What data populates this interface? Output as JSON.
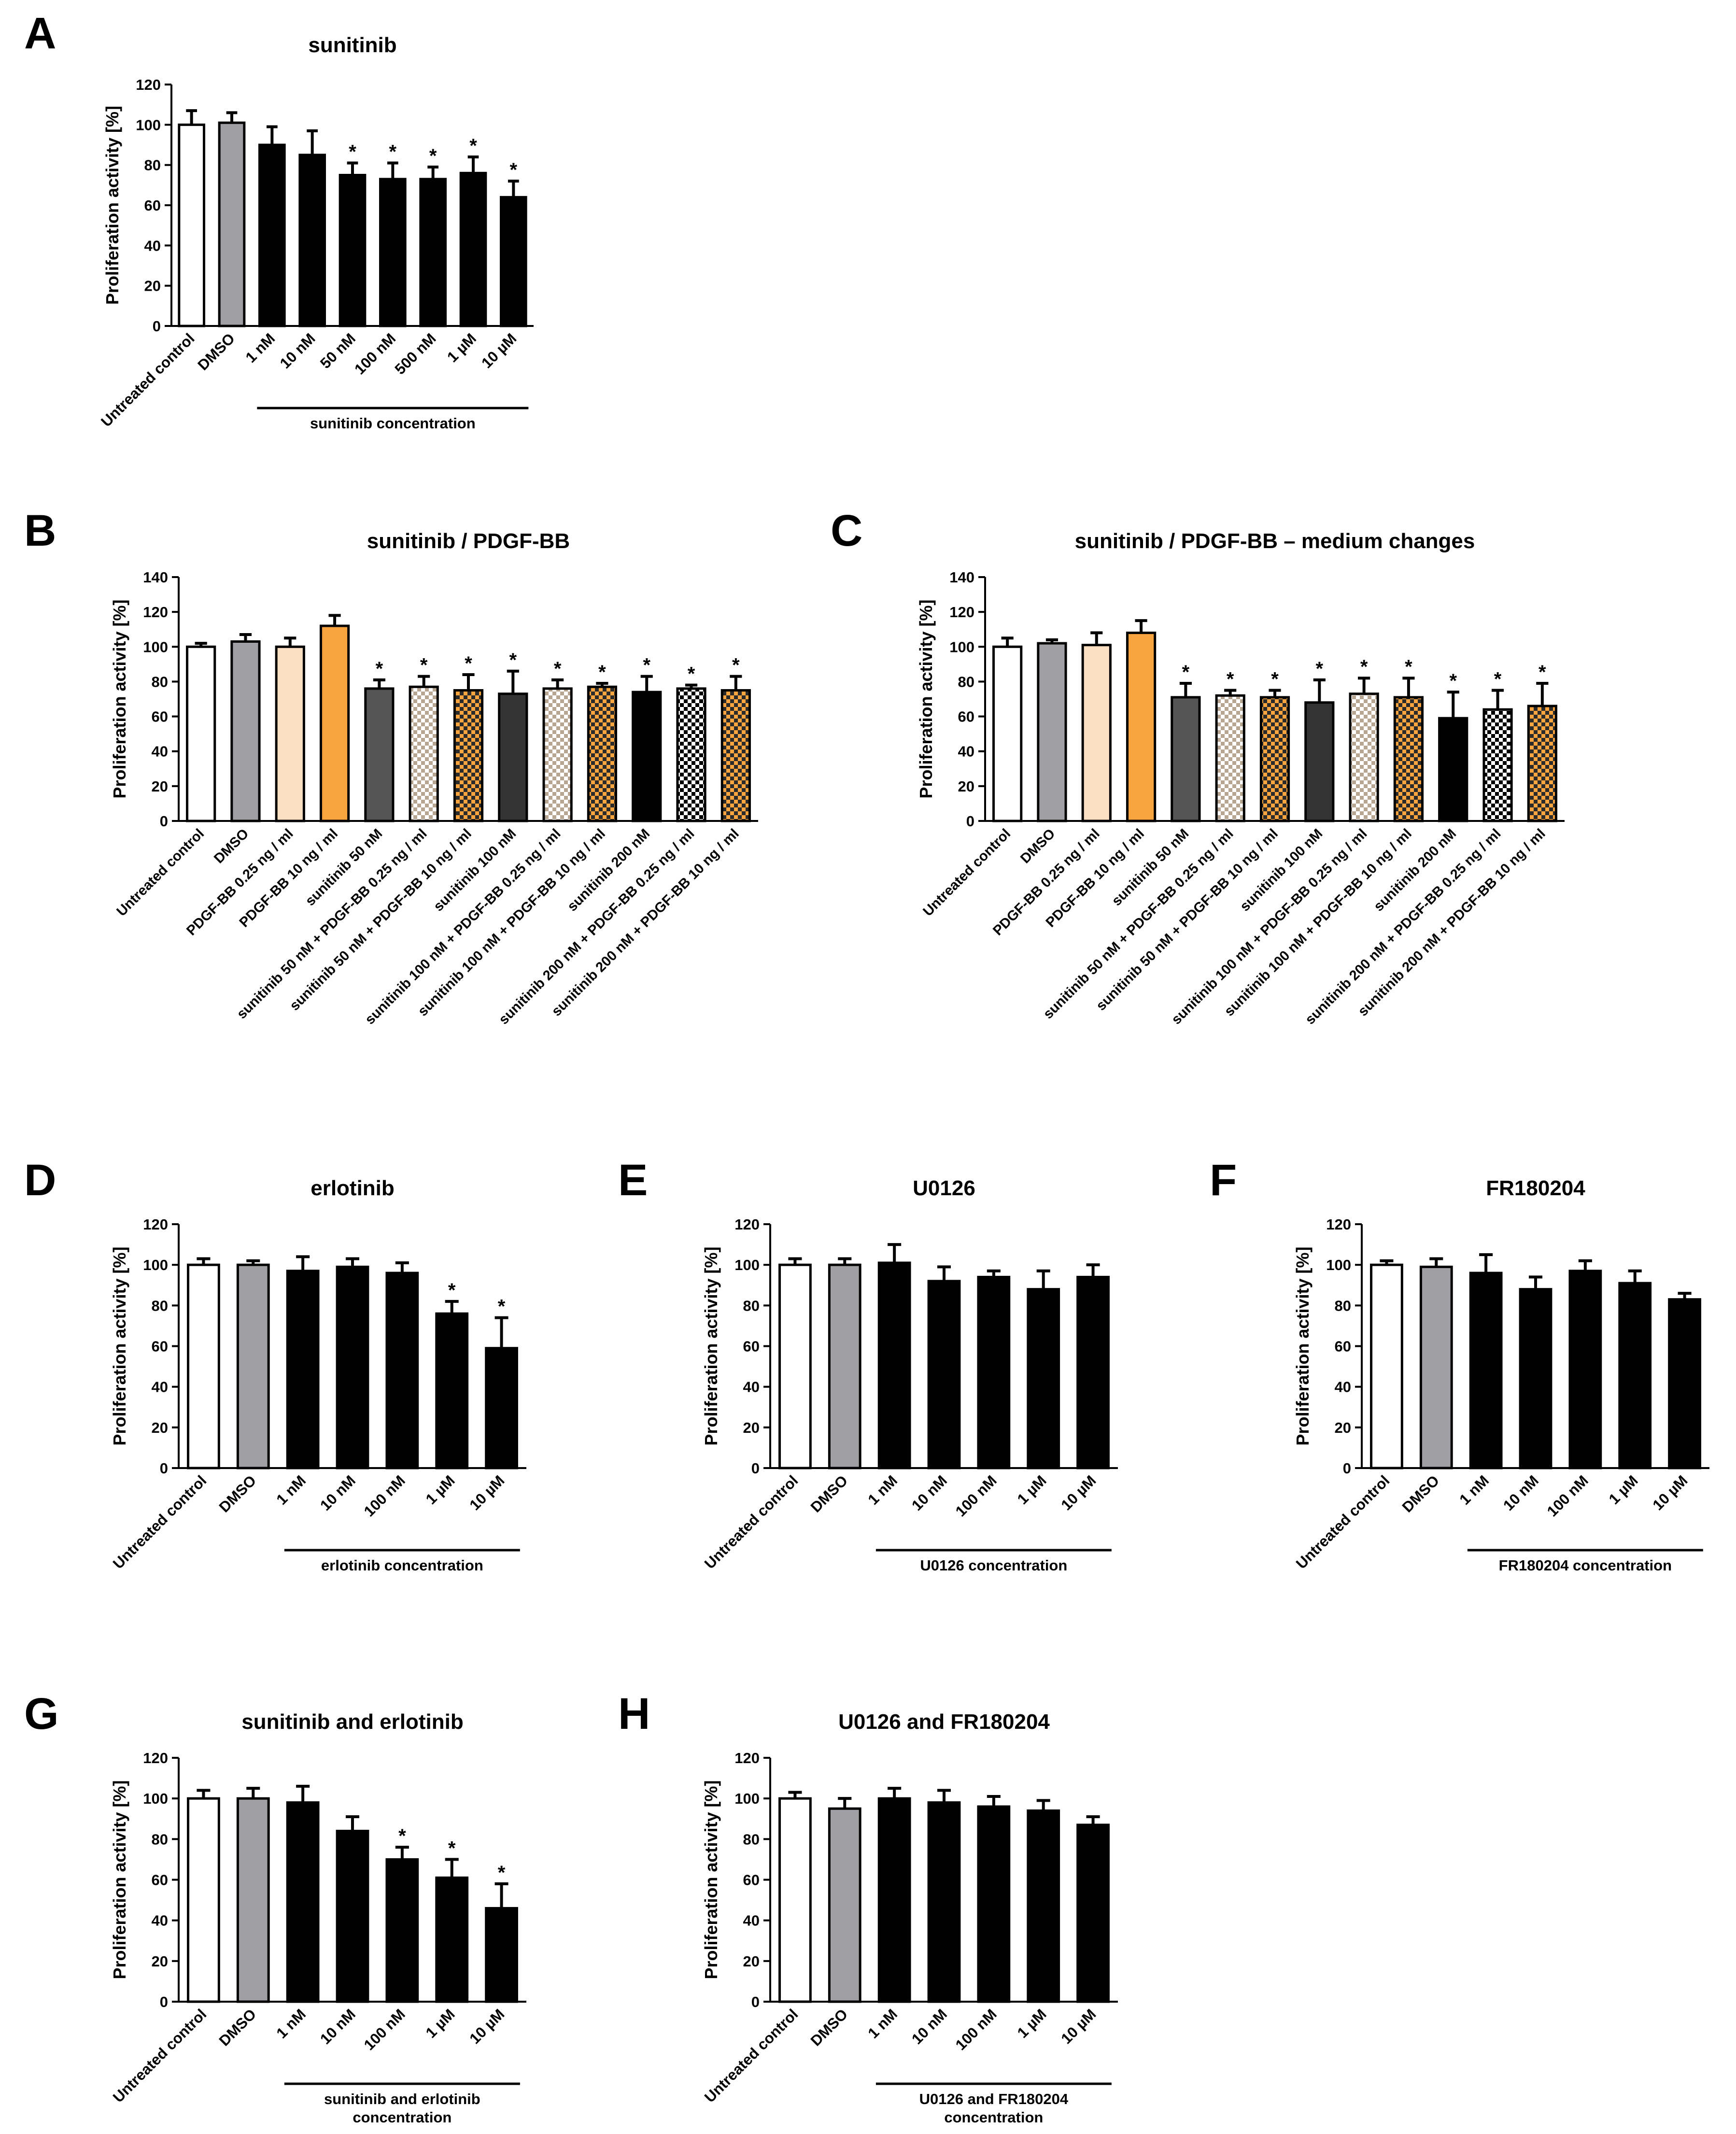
{
  "colors": {
    "white": "#ffffff",
    "gray": "#a0a0a4",
    "light_orange": "#fde0c2",
    "orange": "#f9a43f",
    "dark_gray": "#555555",
    "darker_gray": "#333333",
    "black": "#000000"
  },
  "chart_data": [
    {
      "id": "A",
      "panel_letter": "A",
      "type": "bar",
      "title": "sunitinib",
      "ylabel": "Proliferation activity [%]",
      "ylim": [
        0,
        120
      ],
      "yticks": [
        0,
        20,
        40,
        60,
        80,
        100,
        120
      ],
      "categories": [
        "Untreated control",
        "DMSO",
        "1 nM",
        "10 nM",
        "50 nM",
        "100 nM",
        "500 nM",
        "1 µM",
        "10 µM"
      ],
      "values": [
        100,
        101,
        90,
        85,
        75,
        73,
        73,
        76,
        64
      ],
      "errors": [
        7,
        5,
        9,
        12,
        6,
        8,
        6,
        8,
        8
      ],
      "significant": [
        false,
        false,
        false,
        false,
        true,
        true,
        true,
        true,
        true
      ],
      "fills": [
        "white",
        "gray",
        "black",
        "black",
        "black",
        "black",
        "black",
        "black",
        "black"
      ],
      "group_label": "sunitinib concentration",
      "group_range": [
        2,
        8
      ]
    },
    {
      "id": "B",
      "panel_letter": "B",
      "type": "bar",
      "title": "sunitinib / PDGF-BB",
      "ylabel": "Proliferation activity [%]",
      "ylim": [
        0,
        140
      ],
      "yticks": [
        0,
        20,
        40,
        60,
        80,
        100,
        120,
        140
      ],
      "categories": [
        "Untreated control",
        "DMSO",
        "PDGF-BB 0.25 ng / ml",
        "PDGF-BB 10 ng / ml",
        "sunitinib 50 nM",
        "sunitinib 50 nM + PDGF-BB 0.25 ng / ml",
        "sunitinib 50 nM + PDGF-BB 10 ng / ml",
        "sunitinib 100 nM",
        "sunitinib 100 nM + PDGF-BB 0.25 ng / ml",
        "sunitinib 100 nM + PDGF-BB 10 ng / ml",
        "sunitinib 200 nM",
        "sunitinib 200 nM + PDGF-BB 0.25 ng / ml",
        "sunitinib 200 nM + PDGF-BB 10 ng / ml"
      ],
      "values": [
        100,
        103,
        100,
        112,
        76,
        77,
        75,
        73,
        76,
        77,
        74,
        76,
        75
      ],
      "errors": [
        2,
        4,
        5,
        6,
        5,
        6,
        9,
        13,
        5,
        2,
        9,
        2,
        8
      ],
      "significant": [
        false,
        false,
        false,
        false,
        true,
        true,
        true,
        true,
        true,
        true,
        true,
        true,
        true
      ],
      "fills": [
        "white",
        "gray",
        "light_orange",
        "orange",
        "dark_gray",
        "check-light",
        "check-orange",
        "darker_gray",
        "check-light",
        "check-orange",
        "black",
        "check-white",
        "check-orange"
      ],
      "group_label": "",
      "group_range": null
    },
    {
      "id": "C",
      "panel_letter": "C",
      "type": "bar",
      "title": "sunitinib / PDGF-BB – medium changes",
      "ylabel": "Proliferation activity [%]",
      "ylim": [
        0,
        140
      ],
      "yticks": [
        0,
        20,
        40,
        60,
        80,
        100,
        120,
        140
      ],
      "categories": [
        "Untreated control",
        "DMSO",
        "PDGF-BB 0.25 ng / ml",
        "PDGF-BB 10 ng / ml",
        "sunitinib 50 nM",
        "sunitinib 50 nM + PDGF-BB 0.25 ng / ml",
        "sunitinib 50 nM + PDGF-BB 10 ng / ml",
        "sunitinib 100 nM",
        "sunitinib 100 nM + PDGF-BB 0.25 ng / ml",
        "sunitinib 100 nM + PDGF-BB 10 ng / ml",
        "sunitinib 200 nM",
        "sunitinib 200 nM + PDGF-BB 0.25 ng / ml",
        "sunitinib 200 nM + PDGF-BB 10 ng / ml"
      ],
      "values": [
        100,
        102,
        101,
        108,
        71,
        72,
        71,
        68,
        73,
        71,
        59,
        64,
        66
      ],
      "errors": [
        5,
        2,
        7,
        7,
        8,
        3,
        4,
        13,
        9,
        11,
        15,
        11,
        13
      ],
      "significant": [
        false,
        false,
        false,
        false,
        true,
        true,
        true,
        true,
        true,
        true,
        true,
        true,
        true
      ],
      "fills": [
        "white",
        "gray",
        "light_orange",
        "orange",
        "dark_gray",
        "check-light",
        "check-orange",
        "darker_gray",
        "check-light",
        "check-orange",
        "black",
        "check-white",
        "check-orange"
      ],
      "group_label": "",
      "group_range": null
    },
    {
      "id": "D",
      "panel_letter": "D",
      "type": "bar",
      "title": "erlotinib",
      "ylabel": "Proliferation activity [%]",
      "ylim": [
        0,
        120
      ],
      "yticks": [
        0,
        20,
        40,
        60,
        80,
        100,
        120
      ],
      "categories": [
        "Untreated control",
        "DMSO",
        "1 nM",
        "10 nM",
        "100 nM",
        "1 µM",
        "10 µM"
      ],
      "values": [
        100,
        100,
        97,
        99,
        96,
        76,
        59
      ],
      "errors": [
        3,
        2,
        7,
        4,
        5,
        6,
        15
      ],
      "significant": [
        false,
        false,
        false,
        false,
        false,
        true,
        true
      ],
      "fills": [
        "white",
        "gray",
        "black",
        "black",
        "black",
        "black",
        "black"
      ],
      "group_label": "erlotinib concentration",
      "group_range": [
        2,
        6
      ]
    },
    {
      "id": "E",
      "panel_letter": "E",
      "type": "bar",
      "title": "U0126",
      "ylabel": "Proliferation activity [%]",
      "ylim": [
        0,
        120
      ],
      "yticks": [
        0,
        20,
        40,
        60,
        80,
        100,
        120
      ],
      "categories": [
        "Untreated control",
        "DMSO",
        "1 nM",
        "10 nM",
        "100 nM",
        "1 µM",
        "10 µM"
      ],
      "values": [
        100,
        100,
        101,
        92,
        94,
        88,
        94
      ],
      "errors": [
        3,
        3,
        9,
        7,
        3,
        9,
        6
      ],
      "significant": [
        false,
        false,
        false,
        false,
        false,
        false,
        false
      ],
      "fills": [
        "white",
        "gray",
        "black",
        "black",
        "black",
        "black",
        "black"
      ],
      "group_label": "U0126 concentration",
      "group_range": [
        2,
        6
      ]
    },
    {
      "id": "F",
      "panel_letter": "F",
      "type": "bar",
      "title": "FR180204",
      "ylabel": "Proliferation activity [%]",
      "ylim": [
        0,
        120
      ],
      "yticks": [
        0,
        20,
        40,
        60,
        80,
        100,
        120
      ],
      "categories": [
        "Untreated control",
        "DMSO",
        "1 nM",
        "10 nM",
        "100 nM",
        "1 µM",
        "10 µM"
      ],
      "values": [
        100,
        99,
        96,
        88,
        97,
        91,
        83
      ],
      "errors": [
        2,
        4,
        9,
        6,
        5,
        6,
        3
      ],
      "significant": [
        false,
        false,
        false,
        false,
        false,
        false,
        false
      ],
      "fills": [
        "white",
        "gray",
        "black",
        "black",
        "black",
        "black",
        "black"
      ],
      "group_label": "FR180204 concentration",
      "group_range": [
        2,
        6
      ]
    },
    {
      "id": "G",
      "panel_letter": "G",
      "type": "bar",
      "title": "sunitinib and erlotinib",
      "ylabel": "Proliferation activity [%]",
      "ylim": [
        0,
        120
      ],
      "yticks": [
        0,
        20,
        40,
        60,
        80,
        100,
        120
      ],
      "categories": [
        "Untreated control",
        "DMSO",
        "1 nM",
        "10 nM",
        "100 nM",
        "1 µM",
        "10 µM"
      ],
      "values": [
        100,
        100,
        98,
        84,
        70,
        61,
        46
      ],
      "errors": [
        4,
        5,
        8,
        7,
        6,
        9,
        12
      ],
      "significant": [
        false,
        false,
        false,
        false,
        true,
        true,
        true
      ],
      "fills": [
        "white",
        "gray",
        "black",
        "black",
        "black",
        "black",
        "black"
      ],
      "group_label": "sunitinib and erlotinib concentration",
      "group_range": [
        2,
        6
      ]
    },
    {
      "id": "H",
      "panel_letter": "H",
      "type": "bar",
      "title": "U0126 and FR180204",
      "ylabel": "Proliferation activity [%]",
      "ylim": [
        0,
        120
      ],
      "yticks": [
        0,
        20,
        40,
        60,
        80,
        100,
        120
      ],
      "categories": [
        "Untreated control",
        "DMSO",
        "1 nM",
        "10 nM",
        "100 nM",
        "1 µM",
        "10 µM"
      ],
      "values": [
        100,
        95,
        100,
        98,
        96,
        94,
        87
      ],
      "errors": [
        3,
        5,
        5,
        6,
        5,
        5,
        4
      ],
      "significant": [
        false,
        false,
        false,
        false,
        false,
        false,
        false
      ],
      "fills": [
        "white",
        "gray",
        "black",
        "black",
        "black",
        "black",
        "black"
      ],
      "group_label": "U0126 and FR180204 concentration",
      "group_range": [
        2,
        6
      ]
    }
  ]
}
